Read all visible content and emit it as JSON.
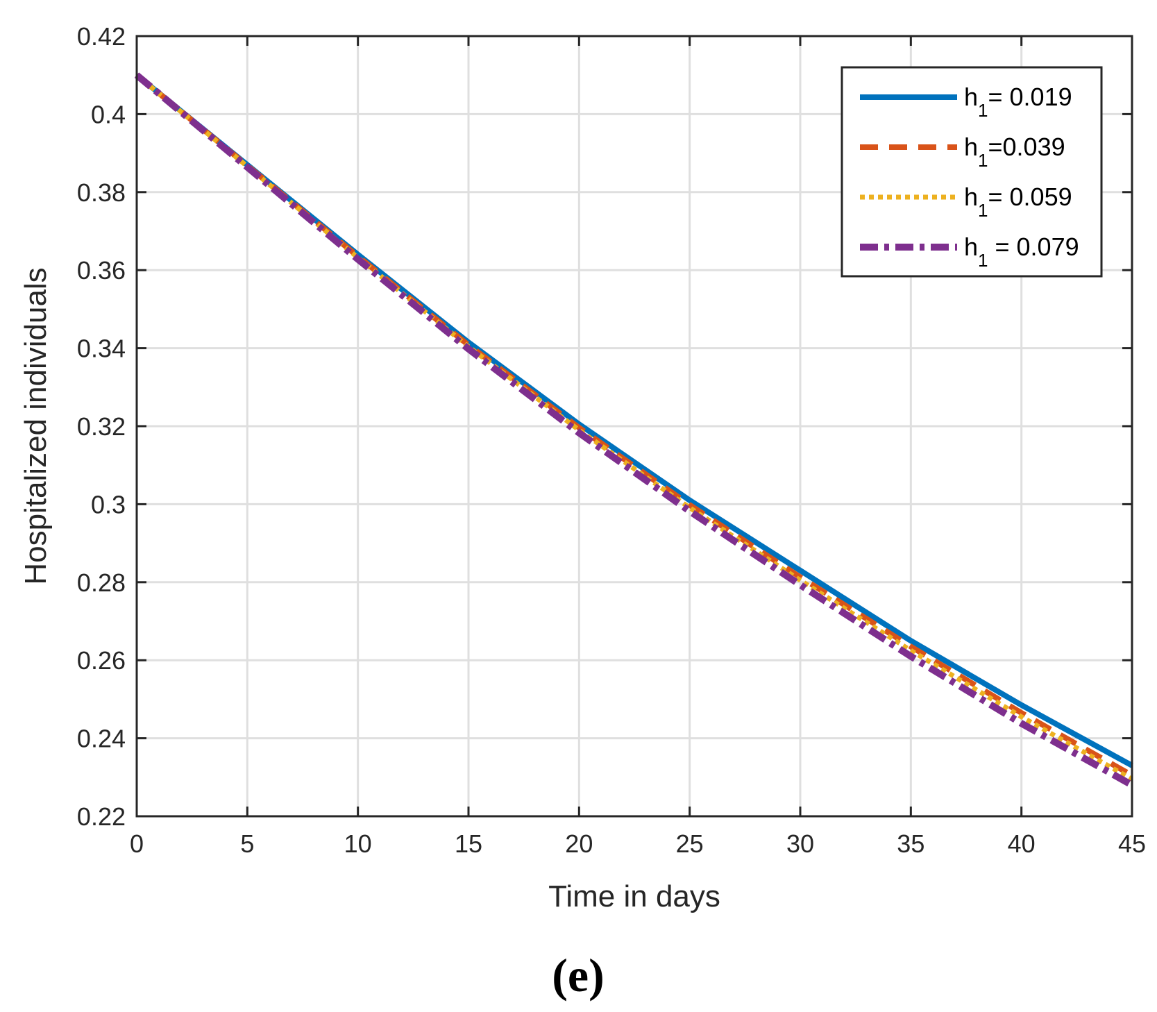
{
  "chart_data": {
    "type": "line",
    "title": "",
    "xlabel": "Time in days",
    "ylabel": "Hospitalized individuals",
    "xlim": [
      0,
      45
    ],
    "ylim": [
      0.22,
      0.42
    ],
    "xticks": [
      0,
      5,
      10,
      15,
      20,
      25,
      30,
      35,
      40,
      45
    ],
    "yticks": [
      0.22,
      0.24,
      0.26,
      0.28,
      0.3,
      0.32,
      0.34,
      0.36,
      0.38,
      0.4,
      0.42
    ],
    "xtick_labels": [
      "0",
      "5",
      "10",
      "15",
      "20",
      "25",
      "30",
      "35",
      "40",
      "45"
    ],
    "ytick_labels": [
      "0.22",
      "0.24",
      "0.26",
      "0.28",
      "0.3",
      "0.32",
      "0.34",
      "0.36",
      "0.38",
      "0.4",
      "0.42"
    ],
    "grid": true,
    "legend_position": "top-right",
    "x": [
      0,
      5,
      10,
      15,
      20,
      25,
      30,
      35,
      40,
      45
    ],
    "series": [
      {
        "name": "h1 = 0.019",
        "legend_main": "h",
        "legend_sub": "1",
        "legend_rest": "= 0.019",
        "color": "#0072BD",
        "style": "solid",
        "values": [
          0.41,
          0.387,
          0.364,
          0.3415,
          0.3205,
          0.301,
          0.283,
          0.265,
          0.2485,
          0.233
        ]
      },
      {
        "name": "h1 =0.039",
        "legend_main": "h",
        "legend_sub": "1",
        "legend_rest": "=0.039",
        "color": "#D95319",
        "style": "dashed",
        "values": [
          0.41,
          0.3868,
          0.3635,
          0.3408,
          0.3196,
          0.2998,
          0.2813,
          0.2635,
          0.2465,
          0.2305
        ]
      },
      {
        "name": "h1 = 0.059",
        "legend_main": "h",
        "legend_sub": "1",
        "legend_rest": "= 0.059",
        "color": "#EDB120",
        "style": "dotted",
        "values": [
          0.41,
          0.3866,
          0.3632,
          0.3404,
          0.319,
          0.2991,
          0.2805,
          0.2625,
          0.2455,
          0.2295
        ]
      },
      {
        "name": "h1  = 0.079",
        "legend_main": "h",
        "legend_sub": "1",
        "legend_rest": " = 0.079",
        "color": "#7E2F8E",
        "style": "dashdot",
        "values": [
          0.41,
          0.3864,
          0.3628,
          0.3398,
          0.3183,
          0.2982,
          0.2793,
          0.261,
          0.2438,
          0.228
        ]
      }
    ]
  },
  "panel_label": "(e)"
}
